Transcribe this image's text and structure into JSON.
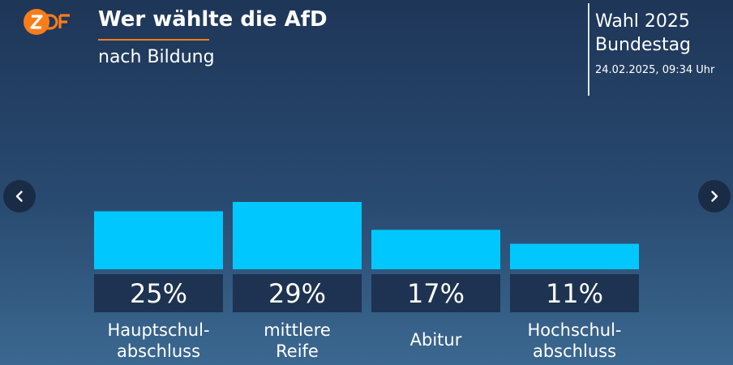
{
  "header": {
    "logo_text": "ZDF",
    "title": "Wer wählte die AfD",
    "subtitle": "nach Bildung"
  },
  "election": {
    "line1": "Wahl 2025",
    "line2": "Bundestag",
    "timestamp": "24.02.2025, 09:34 Uhr"
  },
  "navigation": {
    "prev_icon": "chevron-left-icon",
    "next_icon": "chevron-right-icon"
  },
  "colors": {
    "bar": "#00c8ff",
    "value_box": "#1d3351",
    "accent": "#ef7d1a",
    "logo": "#fa7d19"
  },
  "chart_data": {
    "type": "bar",
    "categories": [
      [
        "Hauptschul-",
        "abschluss"
      ],
      [
        "mittlere",
        "Reife"
      ],
      [
        "Abitur"
      ],
      [
        "Hochschul-",
        "abschluss"
      ]
    ],
    "values": [
      25,
      29,
      17,
      11
    ],
    "value_labels": [
      "25%",
      "29%",
      "17%",
      "11%"
    ],
    "unit": "%",
    "title": "Wer wählte die AfD",
    "subtitle": "nach Bildung",
    "ylim": [
      0,
      29
    ],
    "grid": false,
    "legend": "none"
  }
}
